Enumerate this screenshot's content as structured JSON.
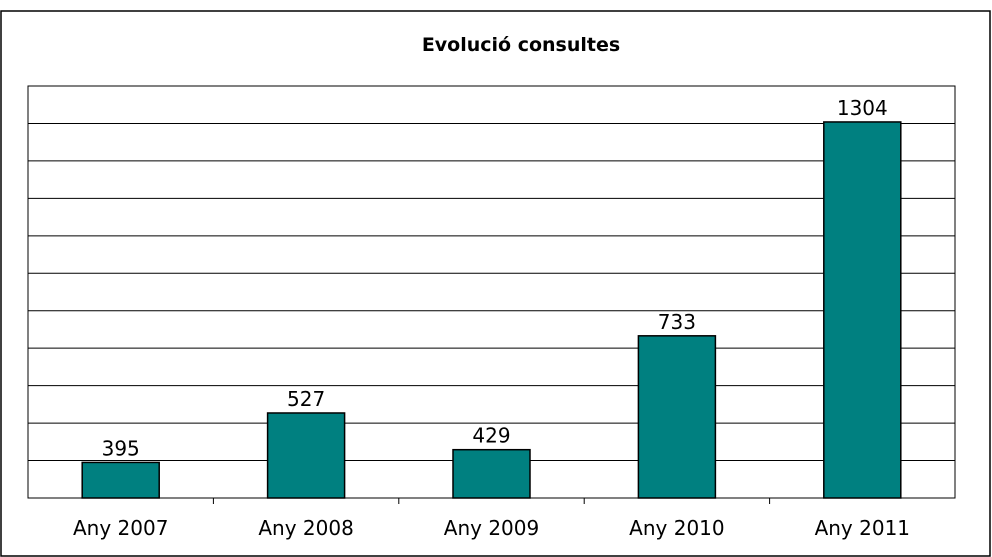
{
  "chart_data": {
    "type": "bar",
    "title": "Evolució consultes",
    "categories": [
      "Any 2007",
      "Any 2008",
      "Any 2009",
      "Any 2010",
      "Any 2011"
    ],
    "values": [
      395,
      527,
      429,
      733,
      1304
    ],
    "data_labels": [
      "395",
      "527",
      "429",
      "733",
      "1304"
    ],
    "xlabel": "",
    "ylabel": "",
    "ylim": [
      300,
      1400
    ],
    "grid": true,
    "legend": "none",
    "bar_color": "#008080"
  }
}
